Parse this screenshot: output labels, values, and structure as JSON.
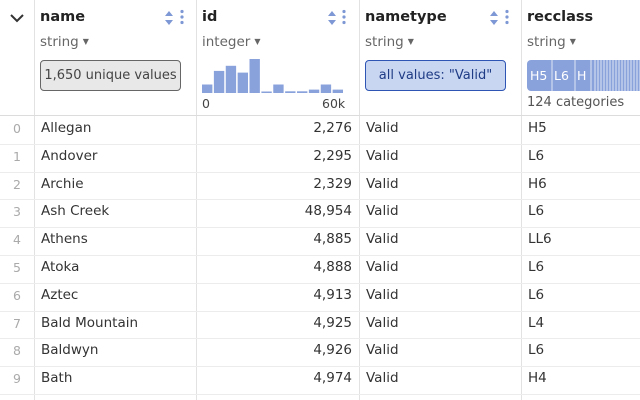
{
  "columns": [
    {
      "name": "name",
      "type": "string",
      "summary": "1,650 unique values"
    },
    {
      "name": "id",
      "type": "integer",
      "hist_min": "0",
      "hist_max": "60k",
      "hist_bins": [
        0.25,
        0.65,
        0.8,
        0.6,
        1.0,
        0,
        0.25,
        0.05,
        0.05,
        0.1,
        0.25,
        0.1
      ]
    },
    {
      "name": "nametype",
      "type": "string",
      "summary": "all values: \"Valid\""
    },
    {
      "name": "recclass",
      "type": "string",
      "top_categories": [
        "H5",
        "L6",
        "H"
      ],
      "summary": "124 categories"
    }
  ],
  "rows": [
    {
      "index": "0",
      "name": "Allegan",
      "id": "2,276",
      "nametype": "Valid",
      "recclass": "H5"
    },
    {
      "index": "1",
      "name": "Andover",
      "id": "2,295",
      "nametype": "Valid",
      "recclass": "L6"
    },
    {
      "index": "2",
      "name": "Archie",
      "id": "2,329",
      "nametype": "Valid",
      "recclass": "H6"
    },
    {
      "index": "3",
      "name": "Ash Creek",
      "id": "48,954",
      "nametype": "Valid",
      "recclass": "L6"
    },
    {
      "index": "4",
      "name": "Athens",
      "id": "4,885",
      "nametype": "Valid",
      "recclass": "LL6"
    },
    {
      "index": "5",
      "name": "Atoka",
      "id": "4,888",
      "nametype": "Valid",
      "recclass": "L6"
    },
    {
      "index": "6",
      "name": "Aztec",
      "id": "4,913",
      "nametype": "Valid",
      "recclass": "L6"
    },
    {
      "index": "7",
      "name": "Bald Mountain",
      "id": "4,925",
      "nametype": "Valid",
      "recclass": "L4"
    },
    {
      "index": "8",
      "name": "Baldwyn",
      "id": "4,926",
      "nametype": "Valid",
      "recclass": "L6"
    },
    {
      "index": "9",
      "name": "Bath",
      "id": "4,974",
      "nametype": "Valid",
      "recclass": "H4"
    }
  ],
  "colors": {
    "accent": "#2e55b3",
    "accent_fill": "#c9d6f2",
    "histogram": "#8aa2db"
  }
}
